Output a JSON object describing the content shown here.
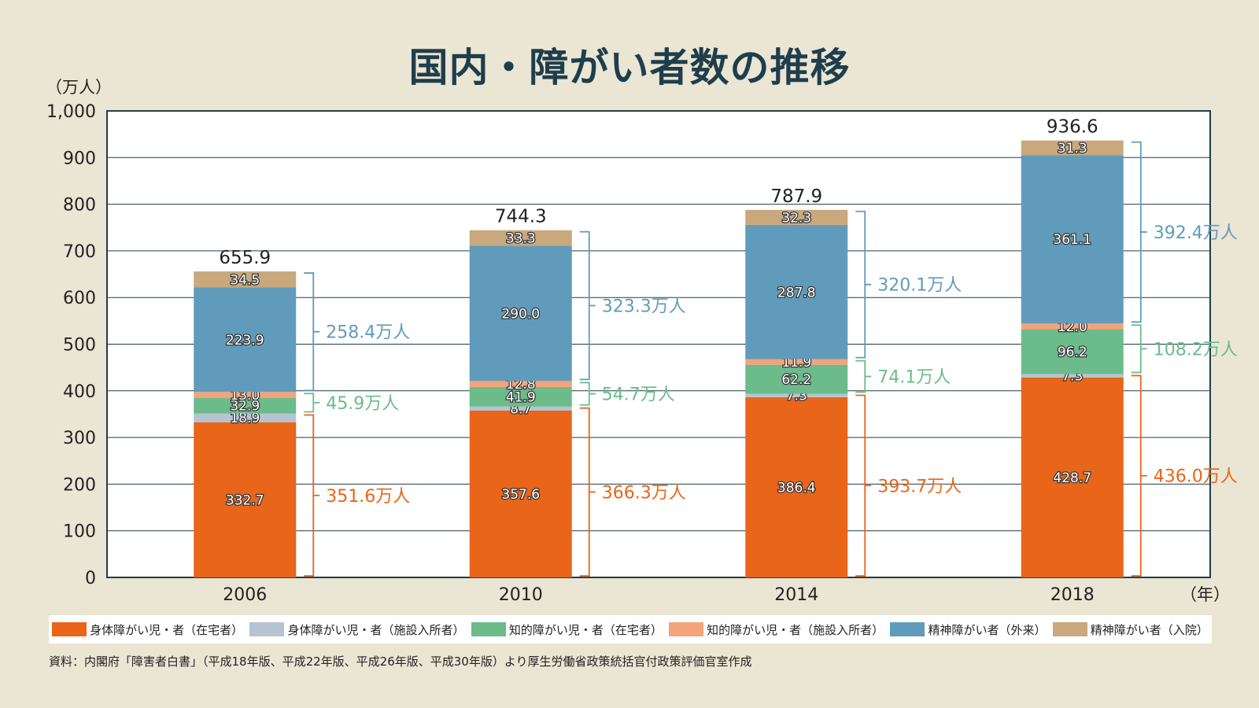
{
  "page": {
    "title": "国内・障がい者数の推移"
  },
  "chart_data": {
    "type": "bar",
    "stacked": true,
    "title": "国内・障がい者数の推移",
    "ylabel": "（万人）",
    "xlabel": "（年）",
    "ylim": [
      0,
      1000
    ],
    "yticks": [
      "0",
      "100",
      "200",
      "300",
      "400",
      "500",
      "600",
      "700",
      "800",
      "900",
      "1,000"
    ],
    "categories": [
      "2006",
      "2010",
      "2014",
      "2018"
    ],
    "series": [
      {
        "name": "身体障がい児・者（在宅者）",
        "color": "#e86519",
        "values": [
          332.7,
          357.6,
          386.4,
          428.7
        ],
        "labels": [
          "332.7",
          "357.6",
          "386.4",
          "428.7"
        ]
      },
      {
        "name": "身体障がい児・者（施設入所者）",
        "color": "#b5c3d3",
        "values": [
          18.9,
          8.7,
          7.3,
          7.3
        ],
        "labels": [
          "18.9",
          "8.7",
          "7.3",
          "7.3"
        ]
      },
      {
        "name": "知的障がい児・者（在宅者）",
        "color": "#6cbb8b",
        "values": [
          32.9,
          41.9,
          62.2,
          96.2
        ],
        "labels": [
          "32.9",
          "41.9",
          "62.2",
          "96.2"
        ]
      },
      {
        "name": "知的障がい児・者（施設入所者）",
        "color": "#f4a37a",
        "values": [
          13.0,
          12.8,
          11.9,
          12.0
        ],
        "labels": [
          "13.0",
          "12.8",
          "11.9",
          "12.0"
        ]
      },
      {
        "name": "精神障がい者（外来）",
        "color": "#619bbb",
        "values": [
          223.9,
          290.0,
          287.8,
          361.1
        ],
        "labels": [
          "223.9",
          "290.0",
          "287.8",
          "361.1"
        ]
      },
      {
        "name": "精神障がい者（入院）",
        "color": "#c8a87c",
        "values": [
          34.5,
          33.3,
          32.3,
          31.3
        ],
        "labels": [
          "34.5",
          "33.3",
          "32.3",
          "31.3"
        ]
      }
    ],
    "totals": [
      "655.9",
      "744.3",
      "787.9",
      "936.6"
    ],
    "groups": [
      {
        "color": "#e86519",
        "first": 0,
        "last": 1,
        "labels": [
          "351.6万人",
          "366.3万人",
          "393.7万人",
          "436.0万人"
        ]
      },
      {
        "color": "#6cbb8b",
        "first": 2,
        "last": 3,
        "labels": [
          "45.9万人",
          "54.7万人",
          "74.1万人",
          "108.2万人"
        ]
      },
      {
        "color": "#619bbb",
        "first": 4,
        "last": 5,
        "labels": [
          "258.4万人",
          "323.3万人",
          "320.1万人",
          "392.4万人"
        ]
      }
    ]
  },
  "source": "資料：内閣府「障害者白書」（平成18年版、平成22年版、平成26年版、平成30年版）より厚生労働省政策統括官付政策評価官室作成"
}
